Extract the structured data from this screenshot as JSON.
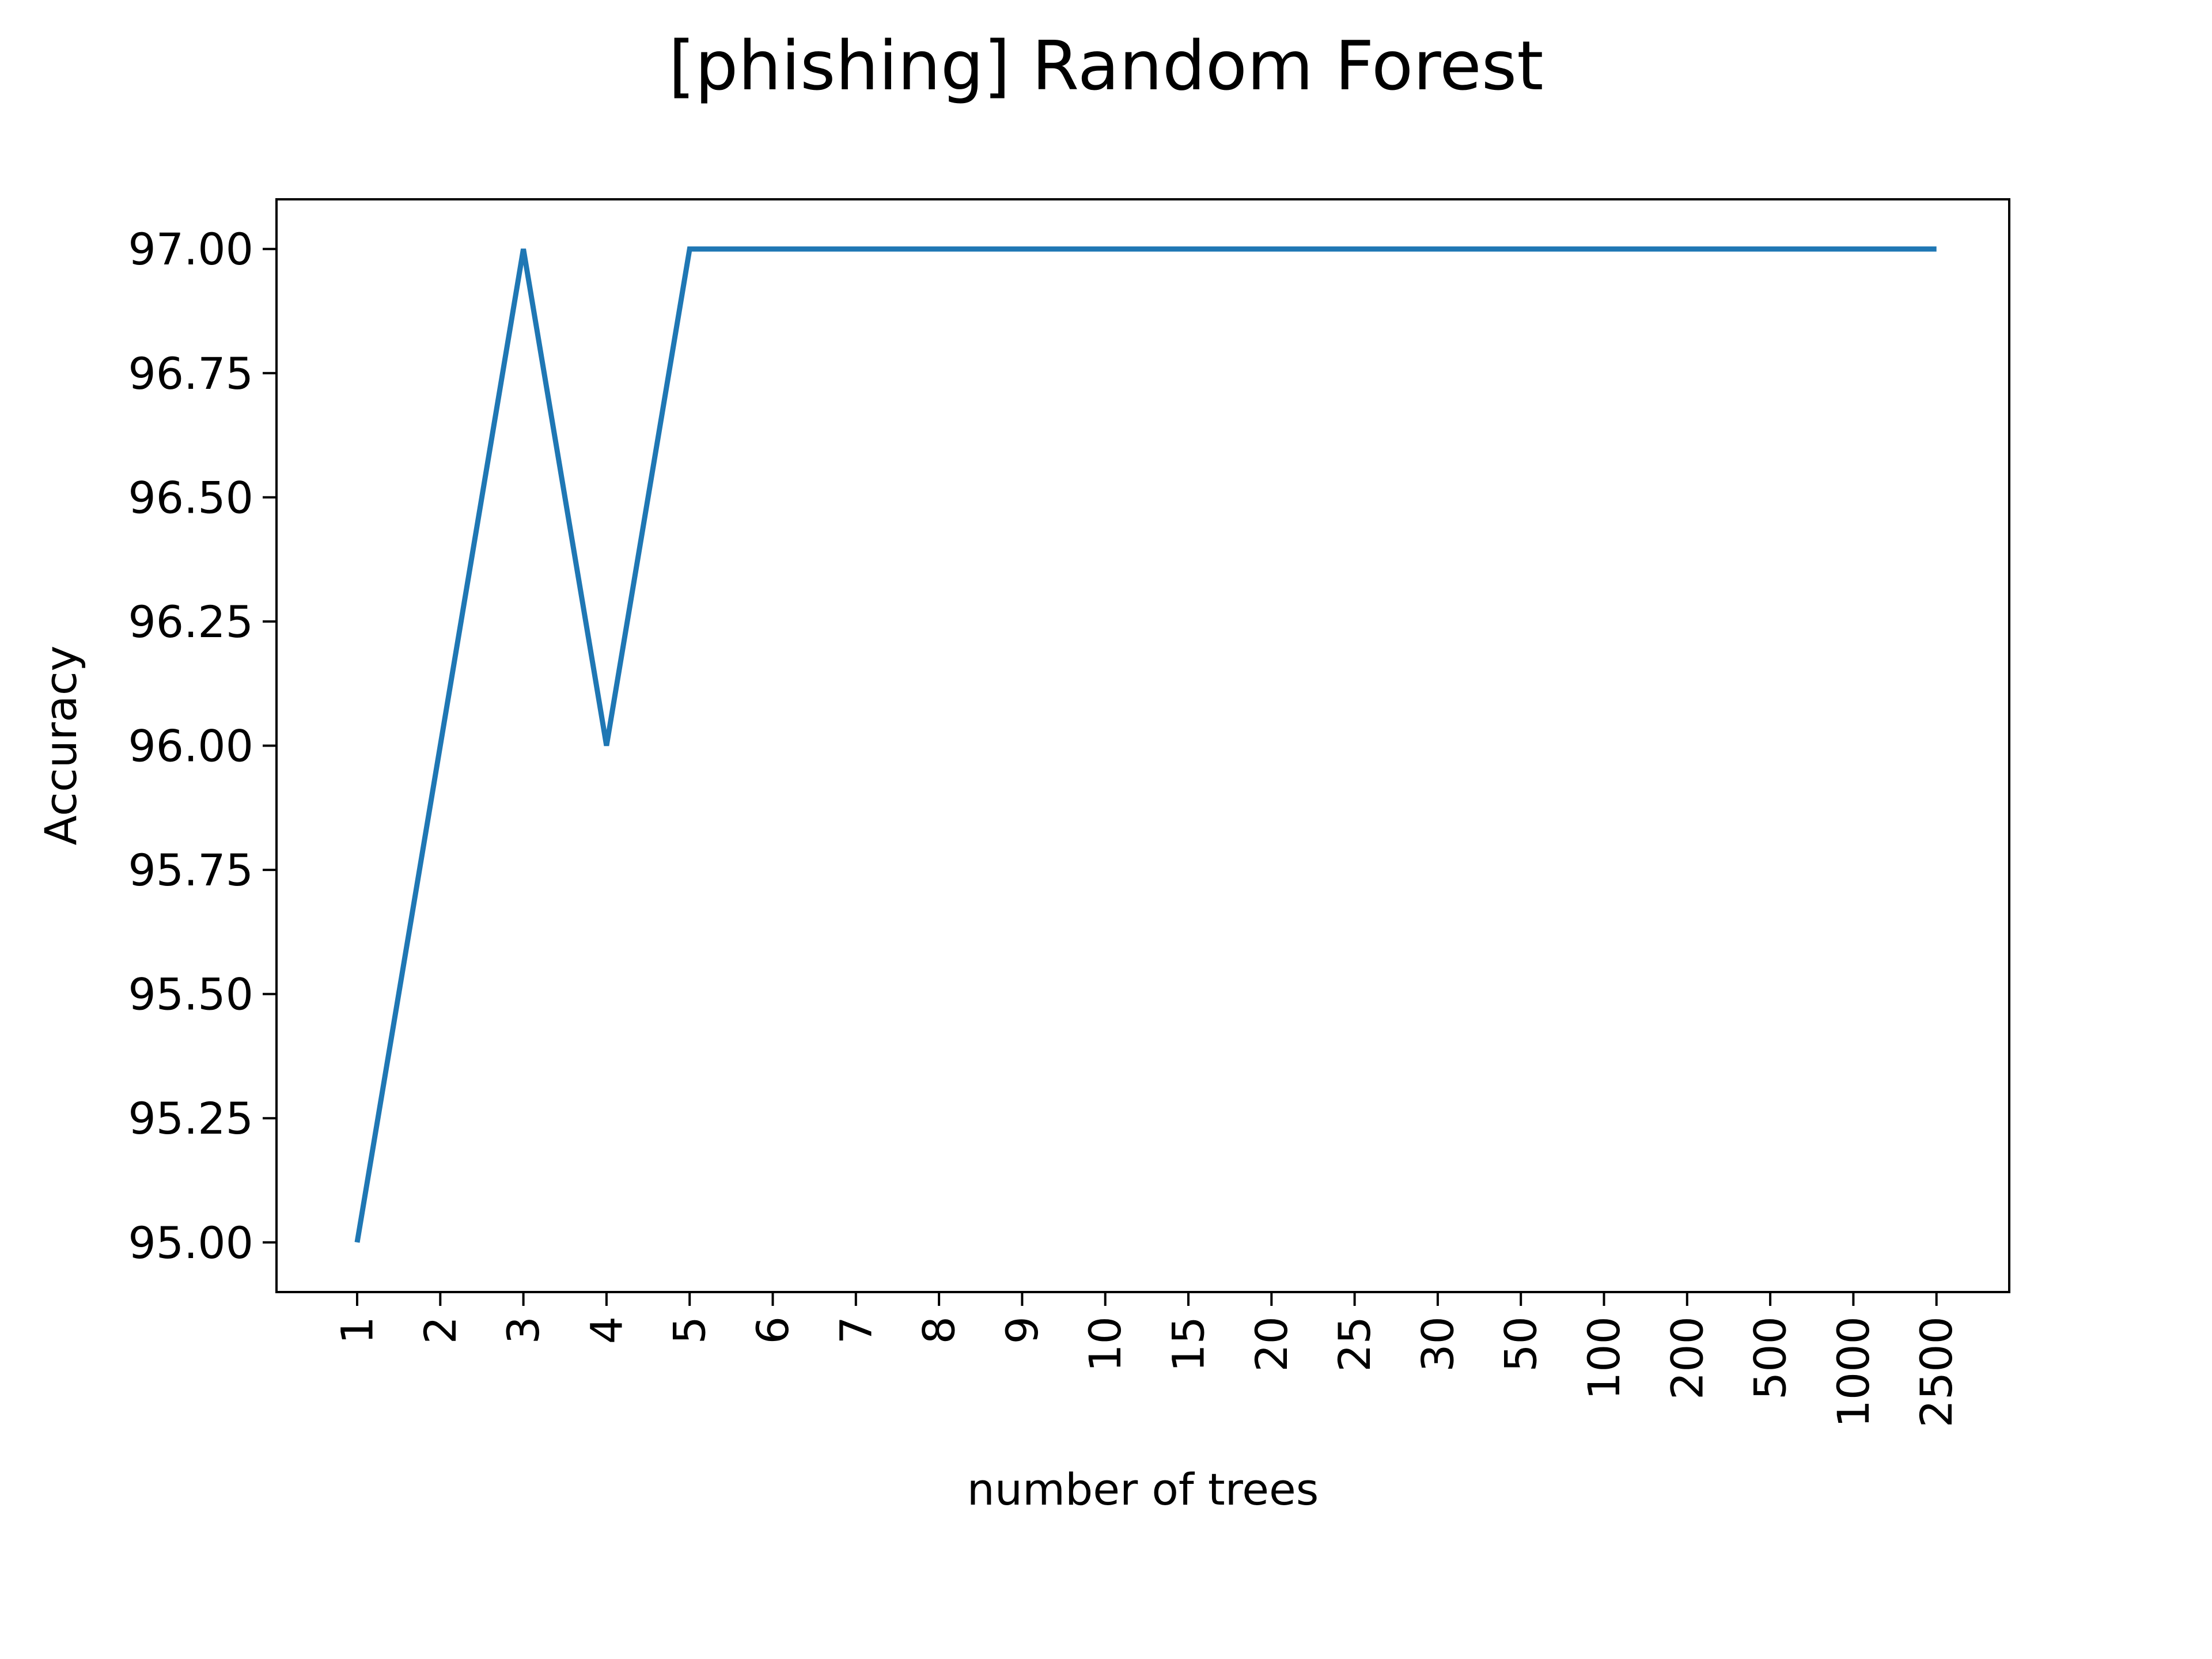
{
  "chart_data": {
    "type": "line",
    "title": "[phishing] Random Forest",
    "xlabel": "number of trees",
    "ylabel": "Accuracy",
    "categories": [
      "1",
      "2",
      "3",
      "4",
      "5",
      "6",
      "7",
      "8",
      "9",
      "10",
      "15",
      "20",
      "25",
      "30",
      "50",
      "100",
      "200",
      "500",
      "1000",
      "2500"
    ],
    "series": [
      {
        "values": [
          95.0,
          96.0,
          97.0,
          96.0,
          97.0,
          97.0,
          97.0,
          97.0,
          97.0,
          97.0,
          97.0,
          97.0,
          97.0,
          97.0,
          97.0,
          97.0,
          97.0,
          97.0,
          97.0,
          97.0
        ],
        "color": "#1f77b4"
      }
    ],
    "ylim": [
      94.9,
      97.1
    ],
    "yticks": [
      "95.00",
      "95.25",
      "95.50",
      "95.75",
      "96.00",
      "96.25",
      "96.50",
      "96.75",
      "97.00"
    ],
    "grid": false,
    "legend": "none"
  }
}
